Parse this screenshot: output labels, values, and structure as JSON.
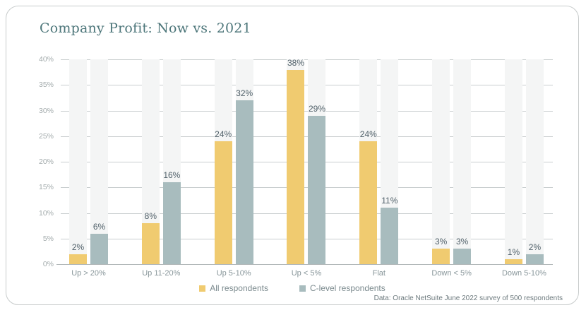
{
  "chart_data": {
    "type": "bar",
    "title": "Company Profit: Now vs. 2021",
    "categories": [
      "Up > 20%",
      "Up 11-20%",
      "Up 5-10%",
      "Up < 5%",
      "Flat",
      "Down < 5%",
      "Down 5-10%"
    ],
    "series": [
      {
        "name": "All respondents",
        "color": "#f0cb70",
        "values": [
          2,
          8,
          24,
          38,
          24,
          3,
          1
        ]
      },
      {
        "name": "C-level respondents",
        "color": "#a8bcbe",
        "values": [
          6,
          16,
          32,
          29,
          11,
          3,
          2
        ]
      }
    ],
    "value_label_suffix": "%",
    "xlabel": "",
    "ylabel": "",
    "ylim": [
      0,
      40
    ],
    "yticks": [
      "40%",
      "35%",
      "30%",
      "25%",
      "20%",
      "15%",
      "10%",
      "5%",
      "0%"
    ],
    "grid": true,
    "legend_position": "bottom-center"
  },
  "footer": {
    "source": "Data: Oracle NetSuite June 2022 survey of 500 respondents"
  },
  "colors": {
    "title": "#4d767a",
    "bar_all": "#f0cb70",
    "bar_clevel": "#a8bcbe",
    "gridline": "#c9cecf",
    "baseline": "#b3b9ba",
    "stripe_bg": "#f4f5f5",
    "value_label": "#51616a",
    "axis_label": "#88969a",
    "card_border": "#c7cbcb"
  }
}
